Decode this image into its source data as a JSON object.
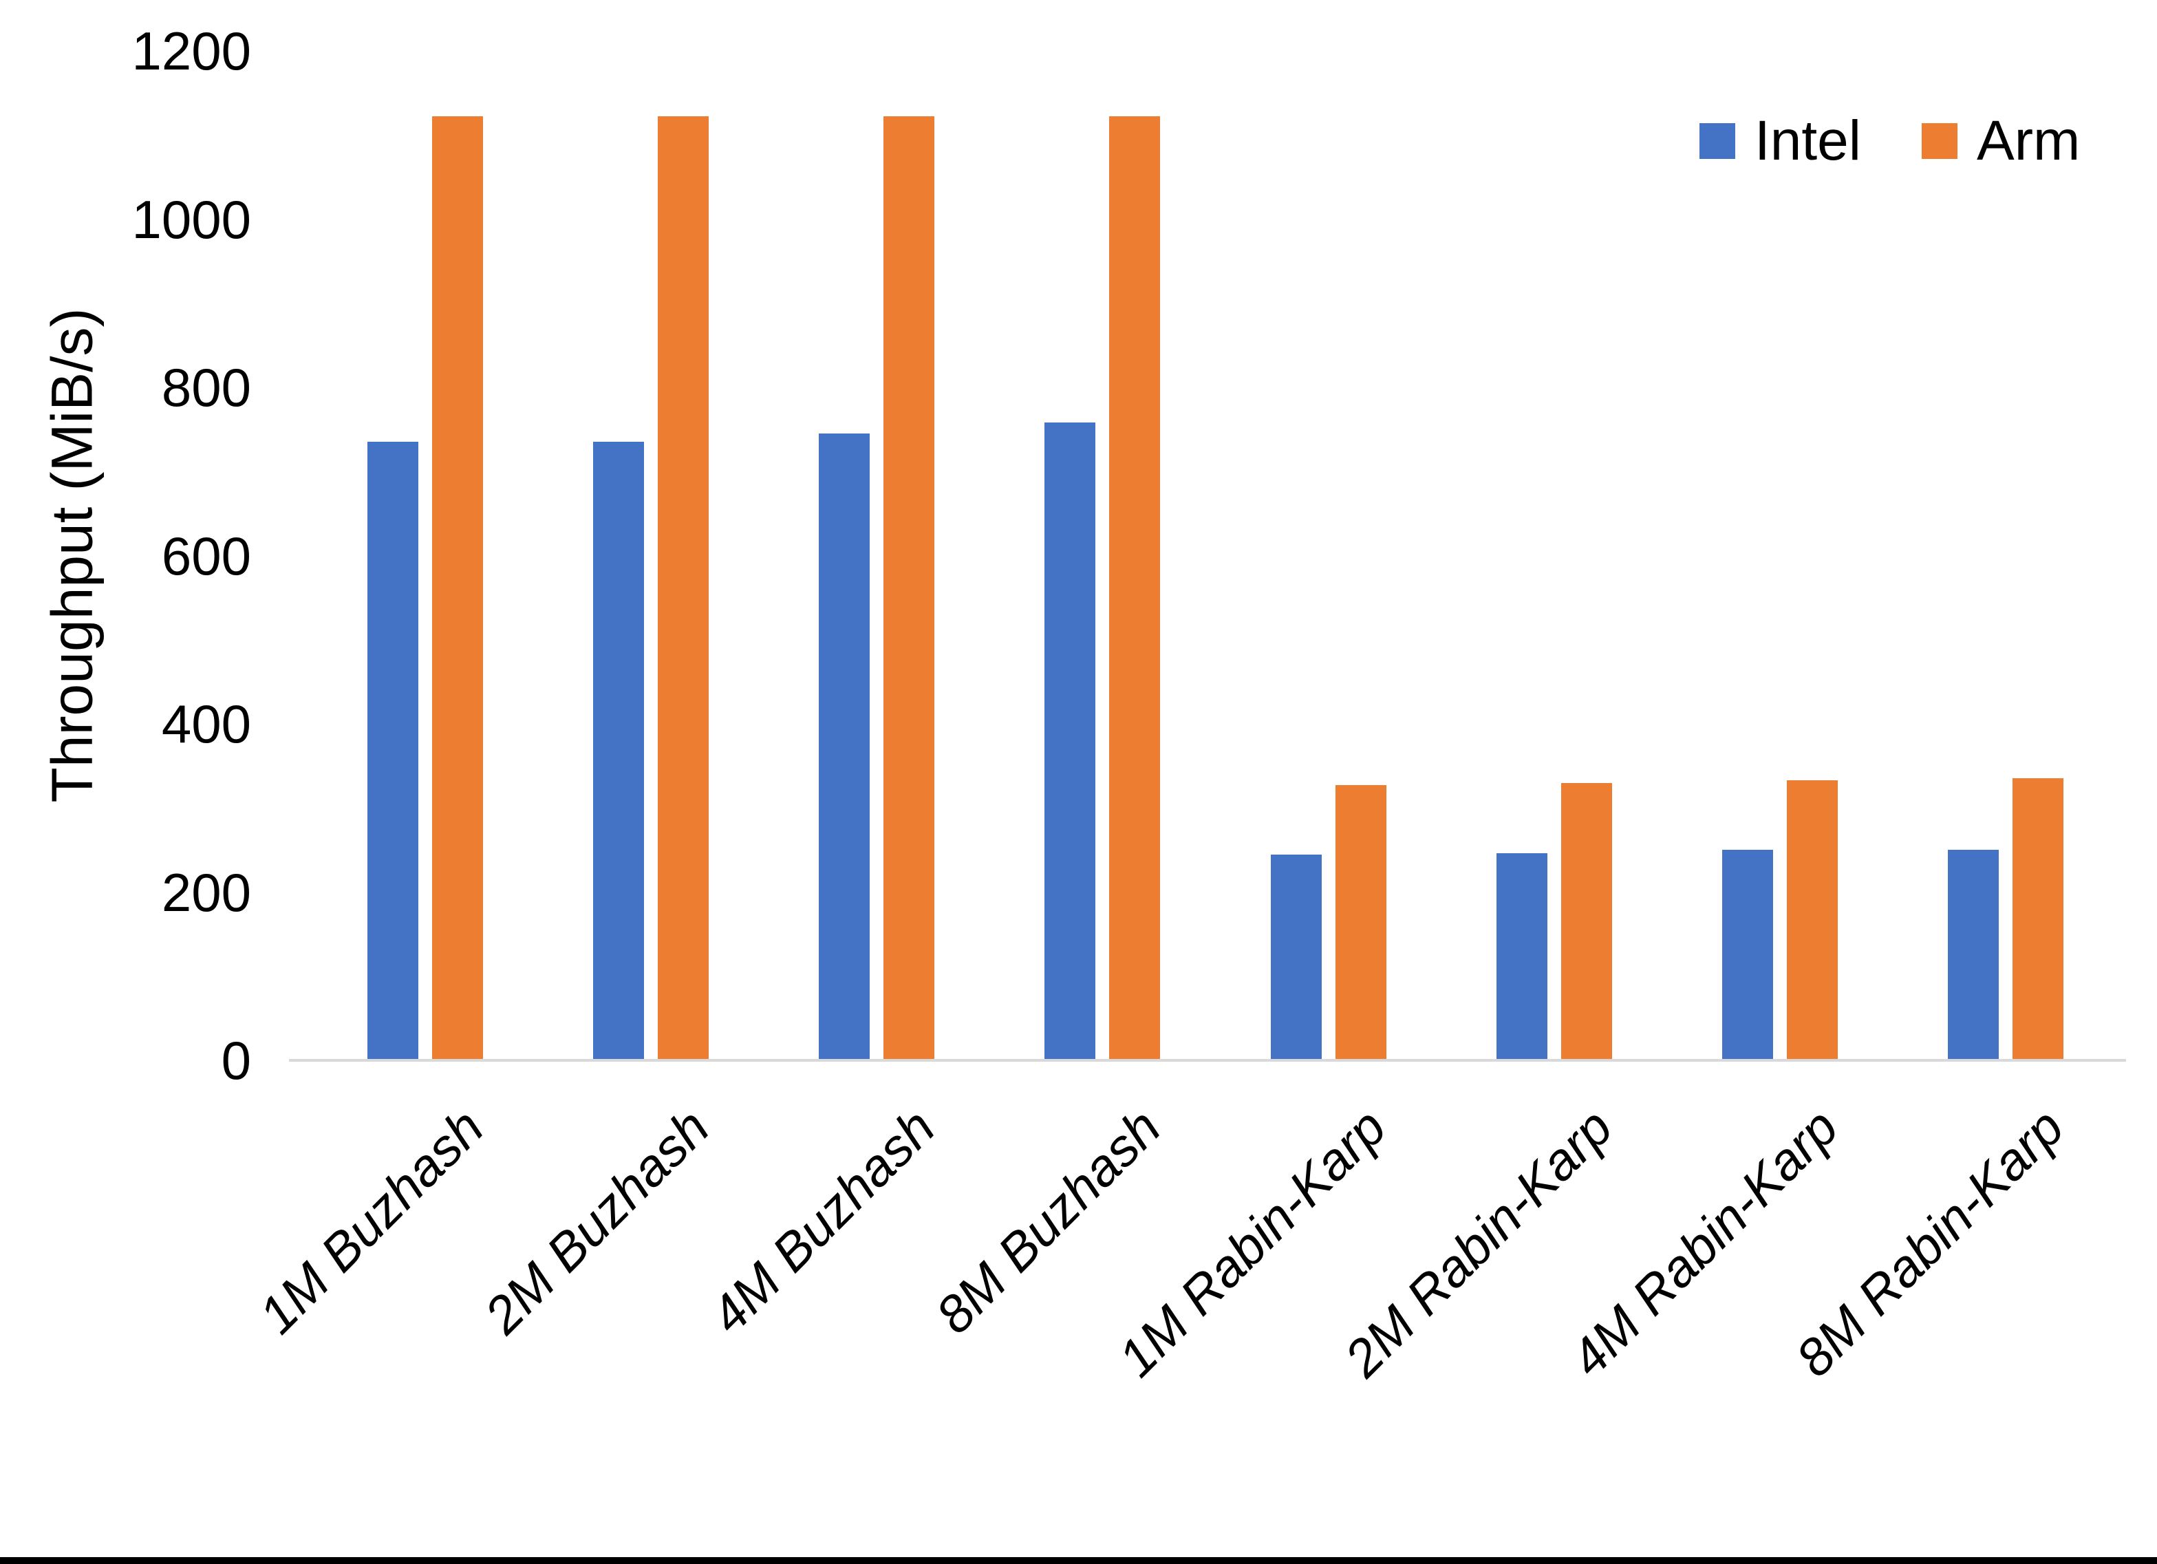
{
  "chart_data": {
    "type": "bar",
    "title": "",
    "ylabel": "Throughput (MiB/s)",
    "xlabel": "",
    "ylim": [
      0,
      1200
    ],
    "yticks": [
      0,
      200,
      400,
      600,
      800,
      1000,
      1200
    ],
    "grid": false,
    "legend_position": "top-right",
    "categories": [
      "1M Buzhash",
      "2M Buzhash",
      "4M Buzhash",
      "8M Buzhash",
      "1M Rabin-Karp",
      "2M Rabin-Karp",
      "4M Rabin-Karp",
      "8M Rabin-Karp"
    ],
    "series": [
      {
        "name": "Intel",
        "color": "#4472C4",
        "values": [
          735,
          735,
          745,
          758,
          245,
          246,
          250,
          250
        ]
      },
      {
        "name": "Arm",
        "color": "#ED7D31",
        "values": [
          1122,
          1122,
          1122,
          1122,
          327,
          330,
          333,
          335
        ]
      }
    ]
  },
  "axis": {
    "line_color": "#D9D9D9",
    "text_color": "#000000"
  }
}
